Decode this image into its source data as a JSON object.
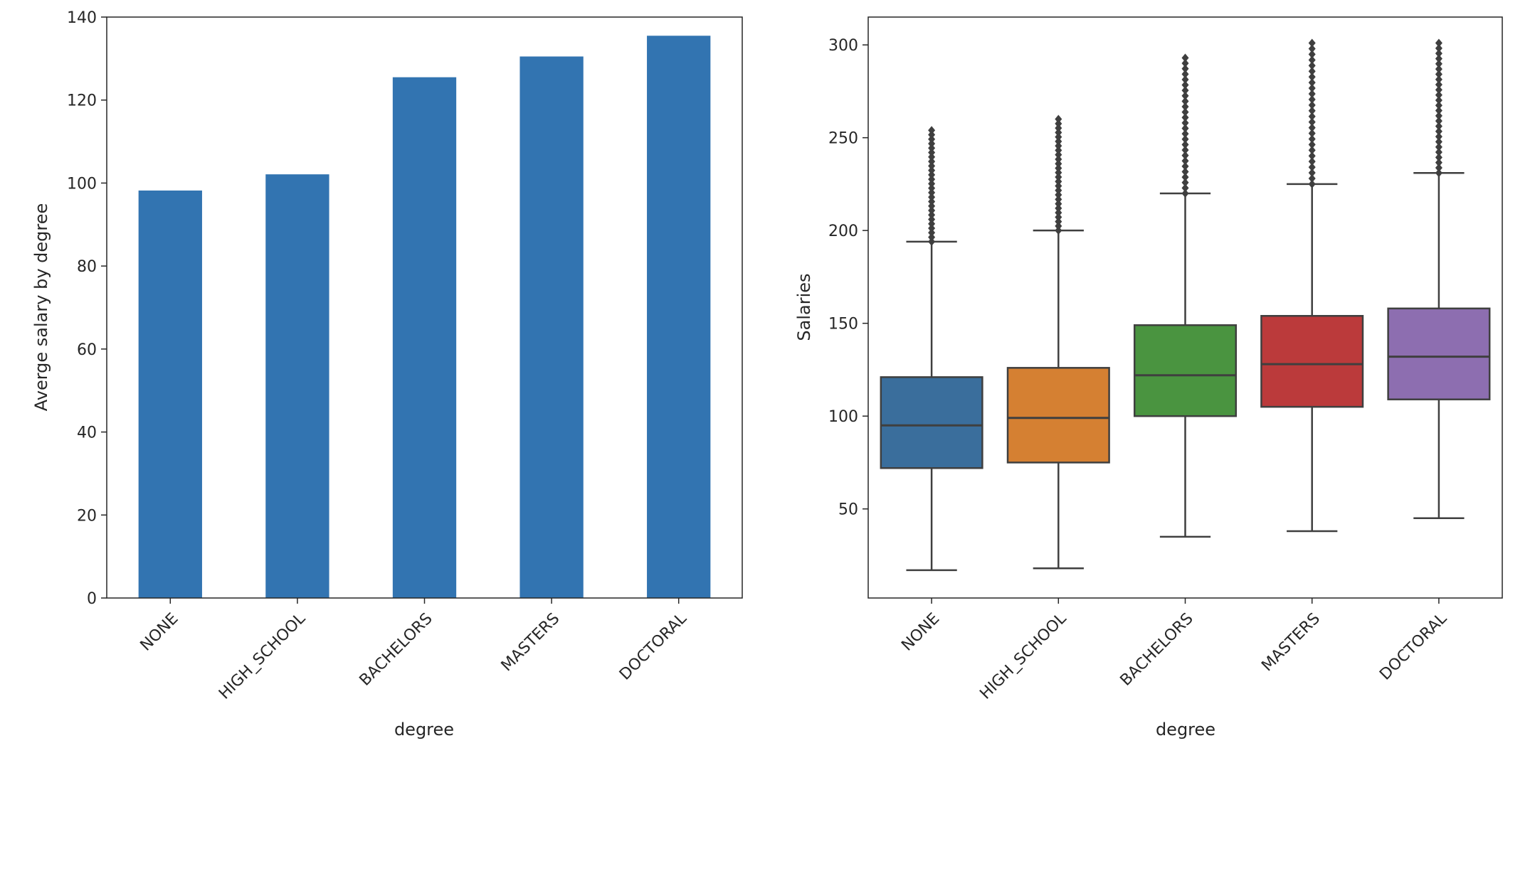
{
  "chart_data": [
    {
      "type": "bar",
      "title": "",
      "xlabel": "degree",
      "ylabel": "Averge salary by degree",
      "categories": [
        "NONE",
        "HIGH_SCHOOL",
        "BACHELORS",
        "MASTERS",
        "DOCTORAL"
      ],
      "values": [
        98.2,
        102.1,
        125.5,
        130.5,
        135.5
      ],
      "ylim": [
        0,
        140
      ],
      "yticks": [
        0,
        20,
        40,
        60,
        80,
        100,
        120,
        140
      ],
      "grid": false,
      "color": "#3274b1"
    },
    {
      "type": "box",
      "title": "",
      "xlabel": "degree",
      "ylabel": "Salaries",
      "categories": [
        "NONE",
        "HIGH_SCHOOL",
        "BACHELORS",
        "MASTERS",
        "DOCTORAL"
      ],
      "ylim": [
        2,
        315
      ],
      "yticks": [
        50,
        100,
        150,
        200,
        250,
        300
      ],
      "grid": false,
      "boxes": [
        {
          "category": "NONE",
          "whisker_low": 17,
          "q1": 72,
          "median": 95,
          "q3": 121,
          "whisker_high": 194,
          "outlier_max": 254,
          "color": "#3a6e9c"
        },
        {
          "category": "HIGH_SCHOOL",
          "whisker_low": 18,
          "q1": 75,
          "median": 99,
          "q3": 126,
          "whisker_high": 200,
          "outlier_max": 260,
          "color": "#d58032"
        },
        {
          "category": "BACHELORS",
          "whisker_low": 35,
          "q1": 100,
          "median": 122,
          "q3": 149,
          "whisker_high": 220,
          "outlier_max": 293,
          "color": "#4a9440"
        },
        {
          "category": "MASTERS",
          "whisker_low": 38,
          "q1": 105,
          "median": 128,
          "q3": 154,
          "whisker_high": 225,
          "outlier_max": 301,
          "color": "#bb3a3b"
        },
        {
          "category": "DOCTORAL",
          "whisker_low": 45,
          "q1": 109,
          "median": 132,
          "q3": 158,
          "whisker_high": 231,
          "outlier_max": 301,
          "color": "#8d6eb0"
        }
      ]
    }
  ]
}
